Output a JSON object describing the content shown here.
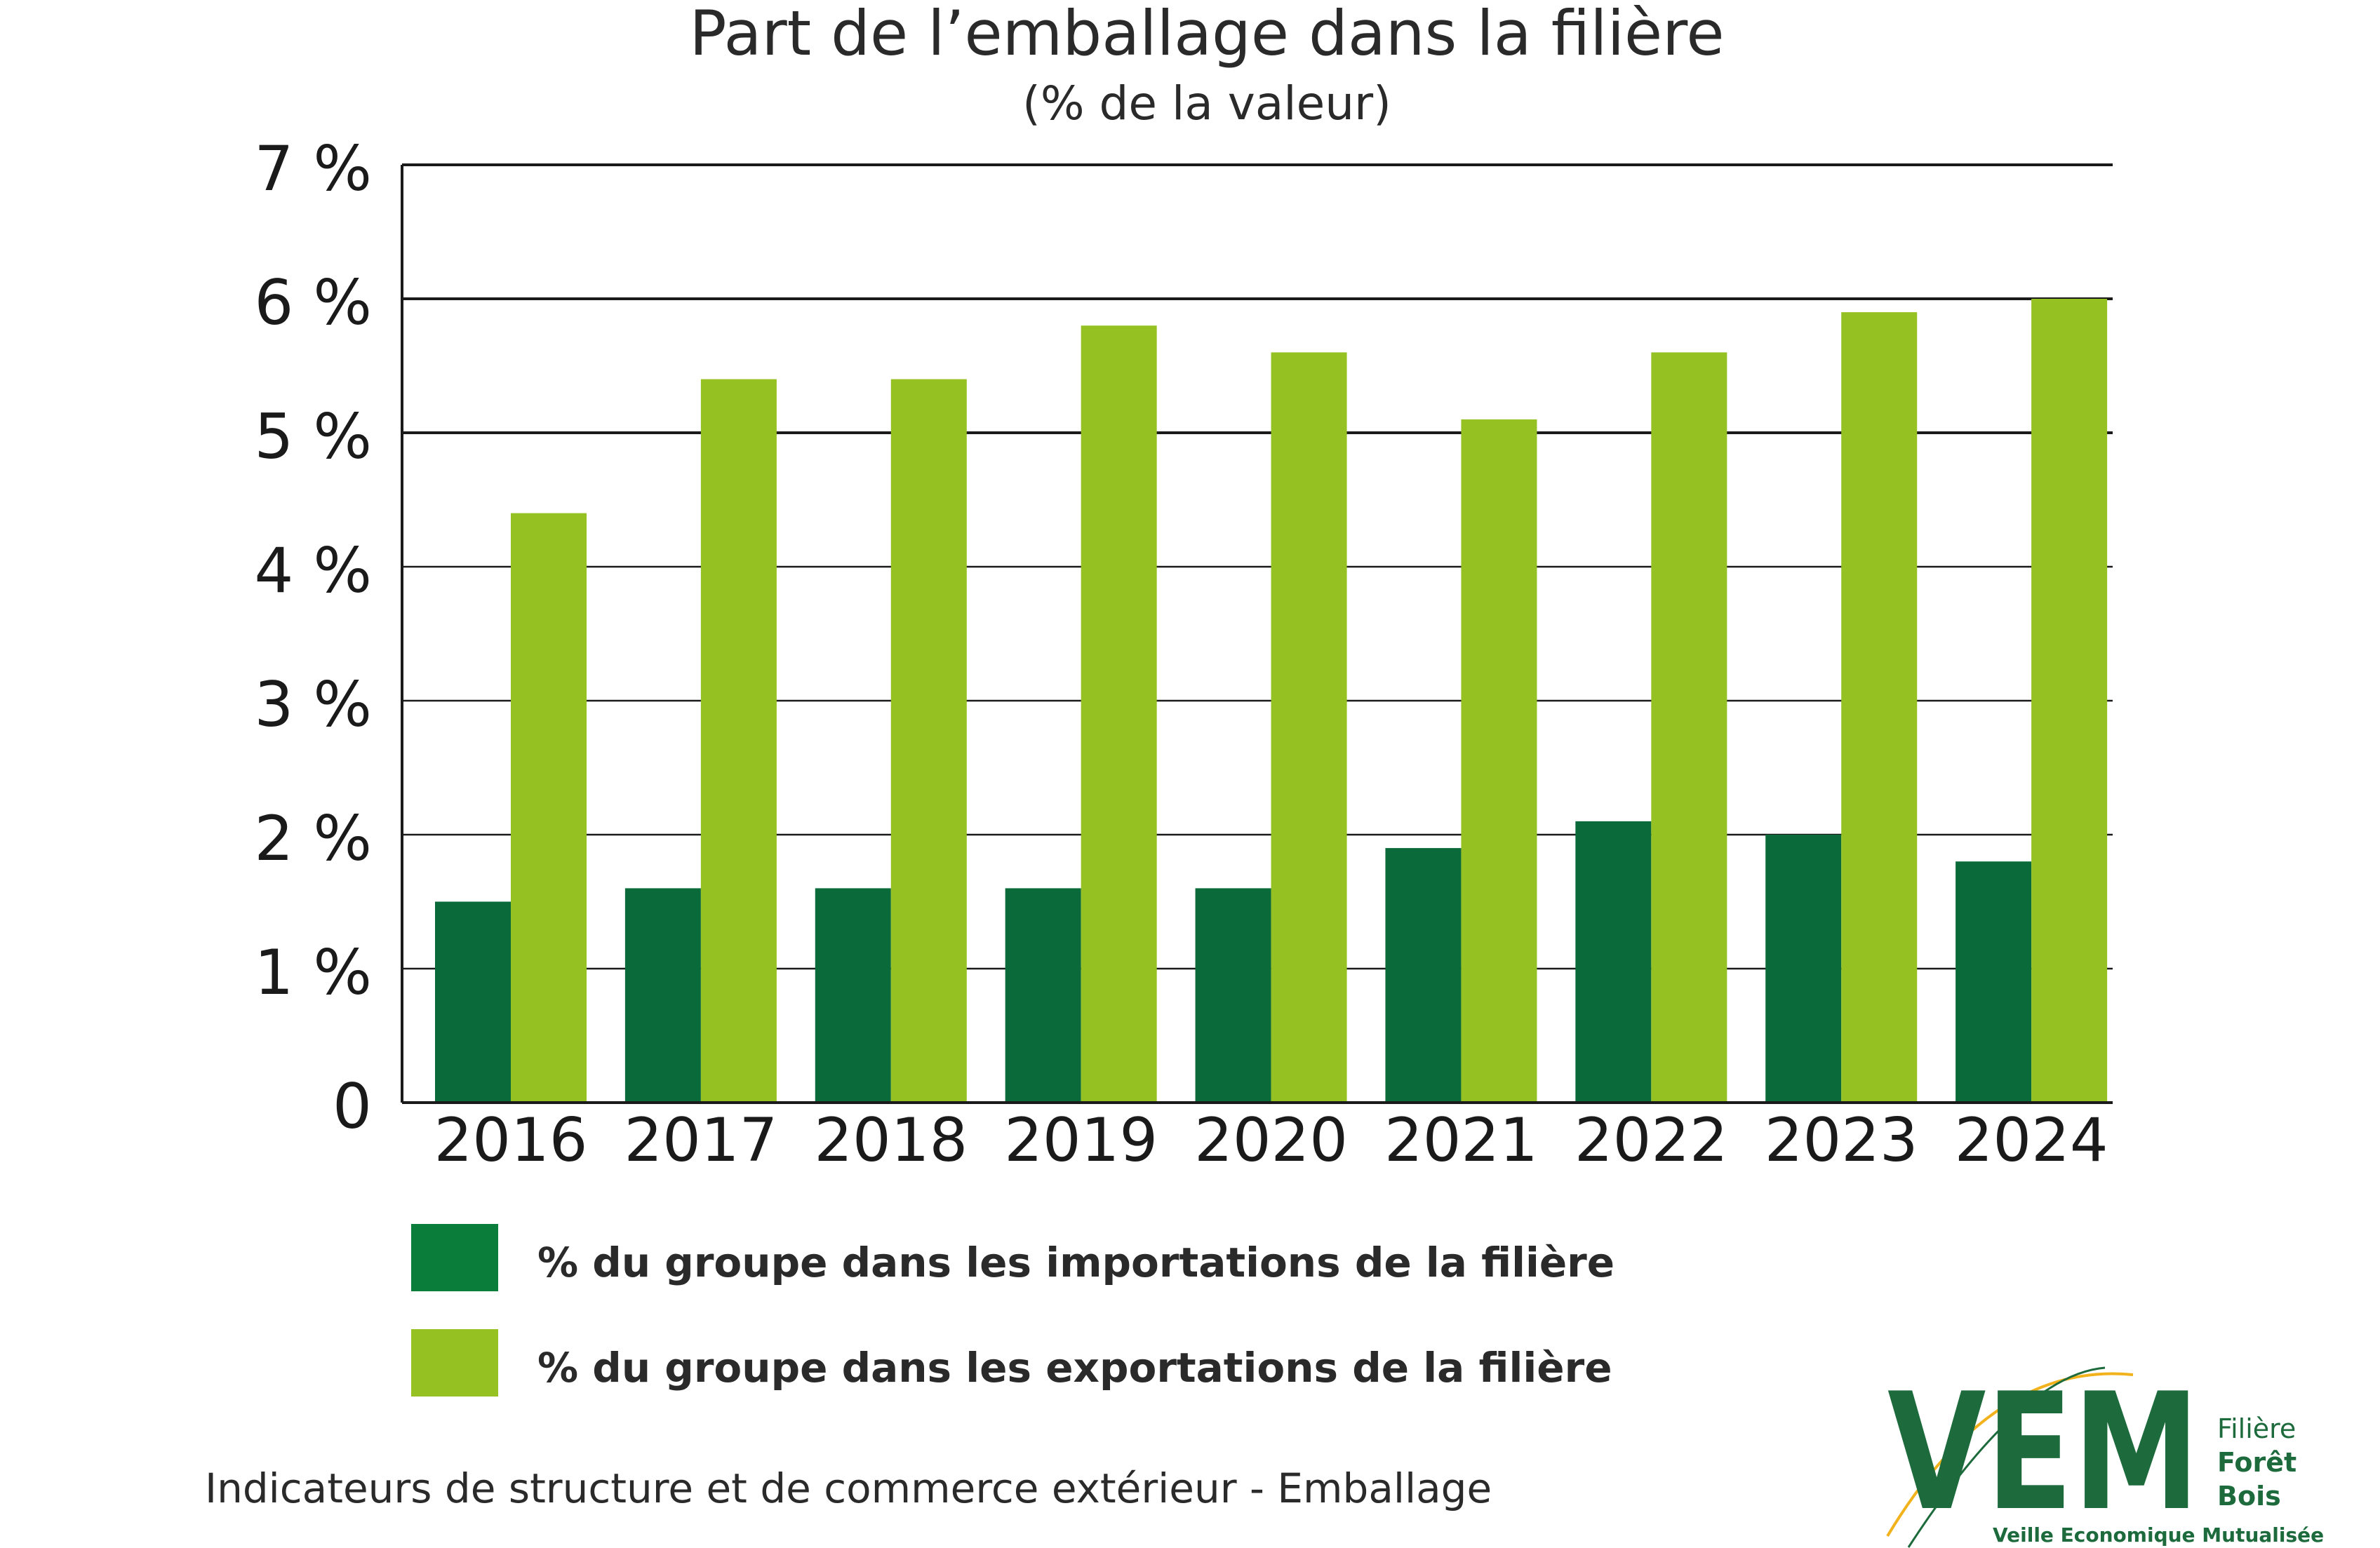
{
  "chart_data": {
    "type": "bar",
    "title": "Part de l’emballage dans la filière",
    "subtitle": "(% de la valeur)",
    "categories": [
      "2016",
      "2017",
      "2018",
      "2019",
      "2020",
      "2021",
      "2022",
      "2023",
      "2024"
    ],
    "series": [
      {
        "name": "% du groupe dans les importations de la filière",
        "color": "#0b6a3a",
        "values": [
          1.5,
          1.6,
          1.6,
          1.6,
          1.6,
          1.9,
          2.1,
          2.0,
          1.8
        ]
      },
      {
        "name": "% du groupe dans les exportations de la filière",
        "color": "#95c122",
        "values": [
          4.4,
          5.4,
          5.4,
          5.8,
          5.6,
          5.1,
          5.6,
          5.9,
          6.0
        ]
      }
    ],
    "ylim": [
      0,
      7
    ],
    "yticks": [
      "0",
      "1 %",
      "2 %",
      "3 %",
      "4 %",
      "5 %",
      "6 %",
      "7 %"
    ],
    "grid": true,
    "legend_position": "bottom"
  },
  "footer": "Indicateurs de structure et de commerce extérieur - Emballage",
  "logo": {
    "letters": "VEM",
    "line1": "Filière",
    "line2": "Forêt",
    "line3": "Bois",
    "tagline": "Veille Economique Mutualisée",
    "color_dark": "#1d6b3c",
    "color_accent": "#f2b21b"
  }
}
